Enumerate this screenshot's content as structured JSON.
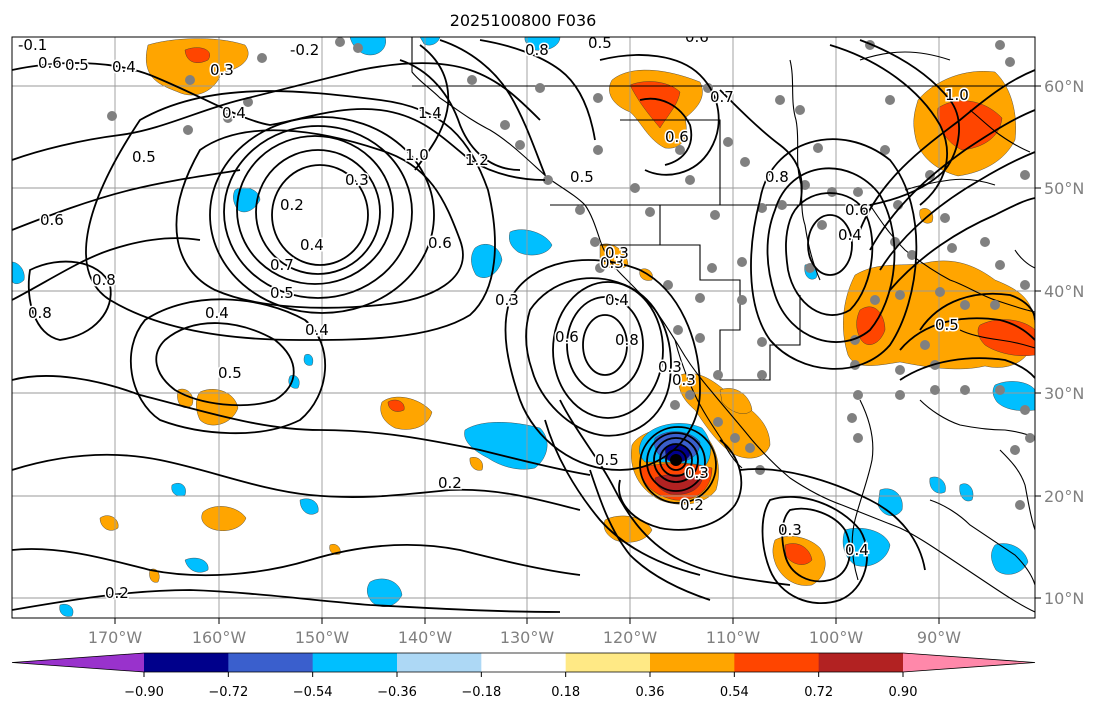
{
  "title": "2025100800 F036",
  "colors": {
    "levels": [
      "#9932cc",
      "#00008b",
      "#3a5fcd",
      "#00bfff",
      "#add8f5",
      "#ffffff",
      "#ffe985",
      "#ffa500",
      "#ff4500",
      "#b22222",
      "#ff88aa"
    ],
    "contour": "#000000",
    "grid": "#999999",
    "station": "#808080"
  },
  "axes": {
    "lon_ticks": [
      "170°W",
      "160°W",
      "150°W",
      "140°W",
      "130°W",
      "120°W",
      "110°W",
      "100°W",
      "90°W"
    ],
    "lat_ticks": [
      "10°N",
      "20°N",
      "30°N",
      "40°N",
      "50°N",
      "60°N"
    ]
  },
  "colorbar": {
    "extend": "both",
    "ticks": [
      "−0.90",
      "−0.72",
      "−0.54",
      "−0.36",
      "−0.18",
      "0.18",
      "0.36",
      "0.54",
      "0.72",
      "0.90"
    ]
  },
  "contour_labels": [
    "-0.1",
    "0.6",
    "0.5",
    "0.4",
    "0.3",
    "-0.2",
    "0.5",
    "0.8",
    "0.6",
    "0.4",
    "0.5",
    "0.3",
    "0.2",
    "0.4",
    "0.7",
    "0.5",
    "1.4",
    "1.0",
    "1.2",
    "0.6",
    "0.3",
    "0.8",
    "0.6",
    "0.4",
    "0.8",
    "0.5",
    "0.6",
    "0.8",
    "0.4",
    "0.3",
    "0.4",
    "0.5",
    "0.3",
    "0.3",
    "0.6",
    "0.7",
    "0.5",
    "0.2",
    "0.2",
    "0.3",
    "0.4",
    "0.5",
    "1.0",
    "0.6",
    "0.8",
    "0.3",
    "0.4",
    "0.2",
    "0.3"
  ]
}
